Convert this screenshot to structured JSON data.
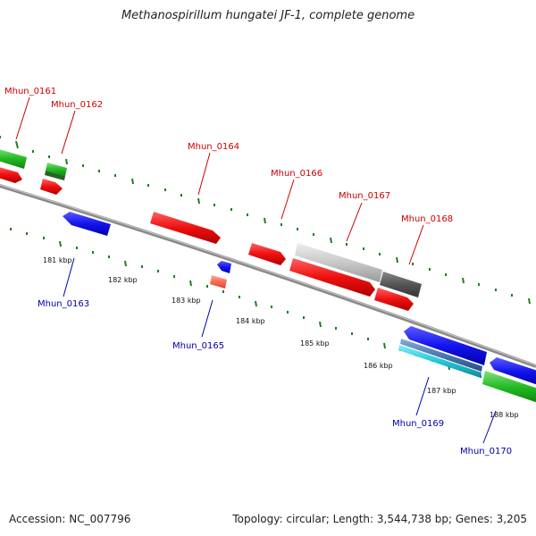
{
  "title": "Methanospirillum hungatei JF-1, complete genome",
  "footer": {
    "accession": "Accession: NC_007796",
    "topology": "Topology: circular; Length: 3,544,738 bp; Genes: 3,205"
  },
  "colors": {
    "forward_cds": "#e01010",
    "reverse_cds": "#1010e0",
    "rna": "#22aa22",
    "pseudo_light": "#c8c8c8",
    "pseudo_dark": "#555555",
    "salmon": "#ff6a55",
    "cyan": "#22c8d8",
    "steel": "#4878b0",
    "backbone": "#808080",
    "ticks": "#1e7f1e",
    "label_red": "#cc0000",
    "label_blue": "#0000aa"
  },
  "scale_labels": [
    "181 kbp",
    "182 kbp",
    "183 kbp",
    "184 kbp",
    "185 kbp",
    "186 kbp",
    "187 kbp",
    "188 kbp"
  ],
  "gene_labels": [
    "Mhun_0161",
    "Mhun_0162",
    "Mhun_0163",
    "Mhun_0164",
    "Mhun_0165",
    "Mhun_0166",
    "Mhun_0167",
    "Mhun_0168",
    "Mhun_0169",
    "Mhun_0170"
  ]
}
